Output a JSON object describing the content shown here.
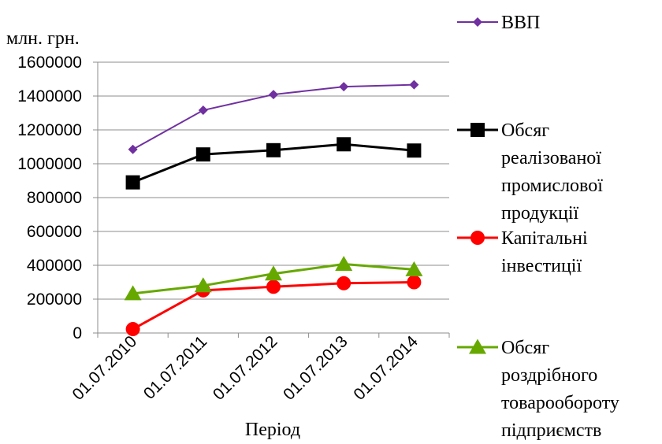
{
  "chart_data": {
    "type": "line",
    "title": "",
    "xlabel": "Період",
    "ylabel": "млн. грн.",
    "ylim": [
      0,
      1600000
    ],
    "yticks": [
      0,
      200000,
      400000,
      600000,
      800000,
      1000000,
      1200000,
      1400000,
      1600000
    ],
    "ytick_labels": [
      "0",
      "200000",
      "400000",
      "600000",
      "800000",
      "1000000",
      "1200000",
      "1400000",
      "1600000"
    ],
    "grid": true,
    "legend_position": "right",
    "categories": [
      "01.07.2010",
      "01.07.2011",
      "01.07.2012",
      "01.07.2013",
      "01.07.2014"
    ],
    "series": [
      {
        "name": "ВВП",
        "legend_lines": [
          "ВВП"
        ],
        "color": "#7030a0",
        "marker": "diamond",
        "values": [
          1085000,
          1316000,
          1409000,
          1455000,
          1467000
        ]
      },
      {
        "name": "Обсяг реалізованої промислової продукції",
        "legend_lines": [
          "Обсяг",
          "реалізованої",
          "промислової",
          "продукції"
        ],
        "color": "#000000",
        "marker": "square",
        "values": [
          890000,
          1055000,
          1080000,
          1115000,
          1078000
        ]
      },
      {
        "name": "Капітальні інвестиції",
        "legend_lines": [
          "Капітальні",
          "інвестиції"
        ],
        "color": "#ff0000",
        "marker": "circle",
        "values": [
          23000,
          252000,
          273000,
          294000,
          300000
        ]
      },
      {
        "name": "Обсяг роздрібного товарообороту підприємств",
        "legend_lines": [
          "Обсяг",
          "роздрібного",
          "товарообороту",
          "підприємств"
        ],
        "color": "#66a800",
        "marker": "triangle",
        "values": [
          233000,
          280000,
          350000,
          407000,
          375000
        ]
      }
    ]
  }
}
